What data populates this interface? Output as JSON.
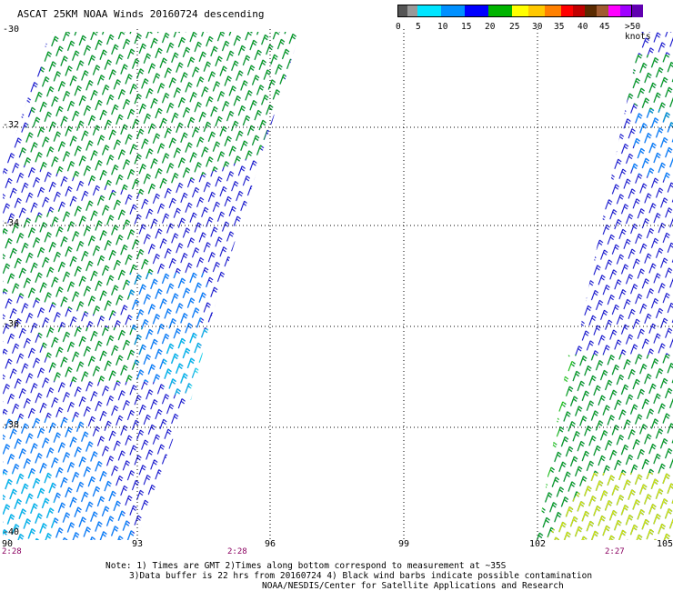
{
  "title": "ASCAT 25KM NOAA Winds 20160724 descending",
  "legend": {
    "colors": [
      "#555555",
      "#999999",
      "#00e5ff",
      "#0090ff",
      "#0000ff",
      "#00b400",
      "#ffff00",
      "#ffc800",
      "#ff8000",
      "#ff0000",
      "#c00000",
      "#5a2a00",
      "#a05a30",
      "#ff00ff",
      "#a000ff",
      "#6000b0"
    ],
    "labels": [
      "0",
      "5",
      "10",
      "15",
      "20",
      "25",
      "30",
      "35",
      "40",
      "45",
      ">50 knots"
    ]
  },
  "axes": {
    "lat_labels": [
      "-30",
      "-32",
      "-34",
      "-36",
      "-38",
      "-40"
    ],
    "lon_labels": [
      "90",
      "93",
      "96",
      "99",
      "102",
      "105"
    ]
  },
  "times": [
    "2:28",
    "2:28",
    "2:27"
  ],
  "notes": {
    "line1": "Note: 1) Times are GMT 2)Times along bottom correspond to measurement at ~35S",
    "line2": "3)Data buffer is 22 hrs from 20160724 4) Black wind barbs indicate possible contamination",
    "line3": "NOAA/NESDIS/Center for Satellite Applications and Research"
  }
}
